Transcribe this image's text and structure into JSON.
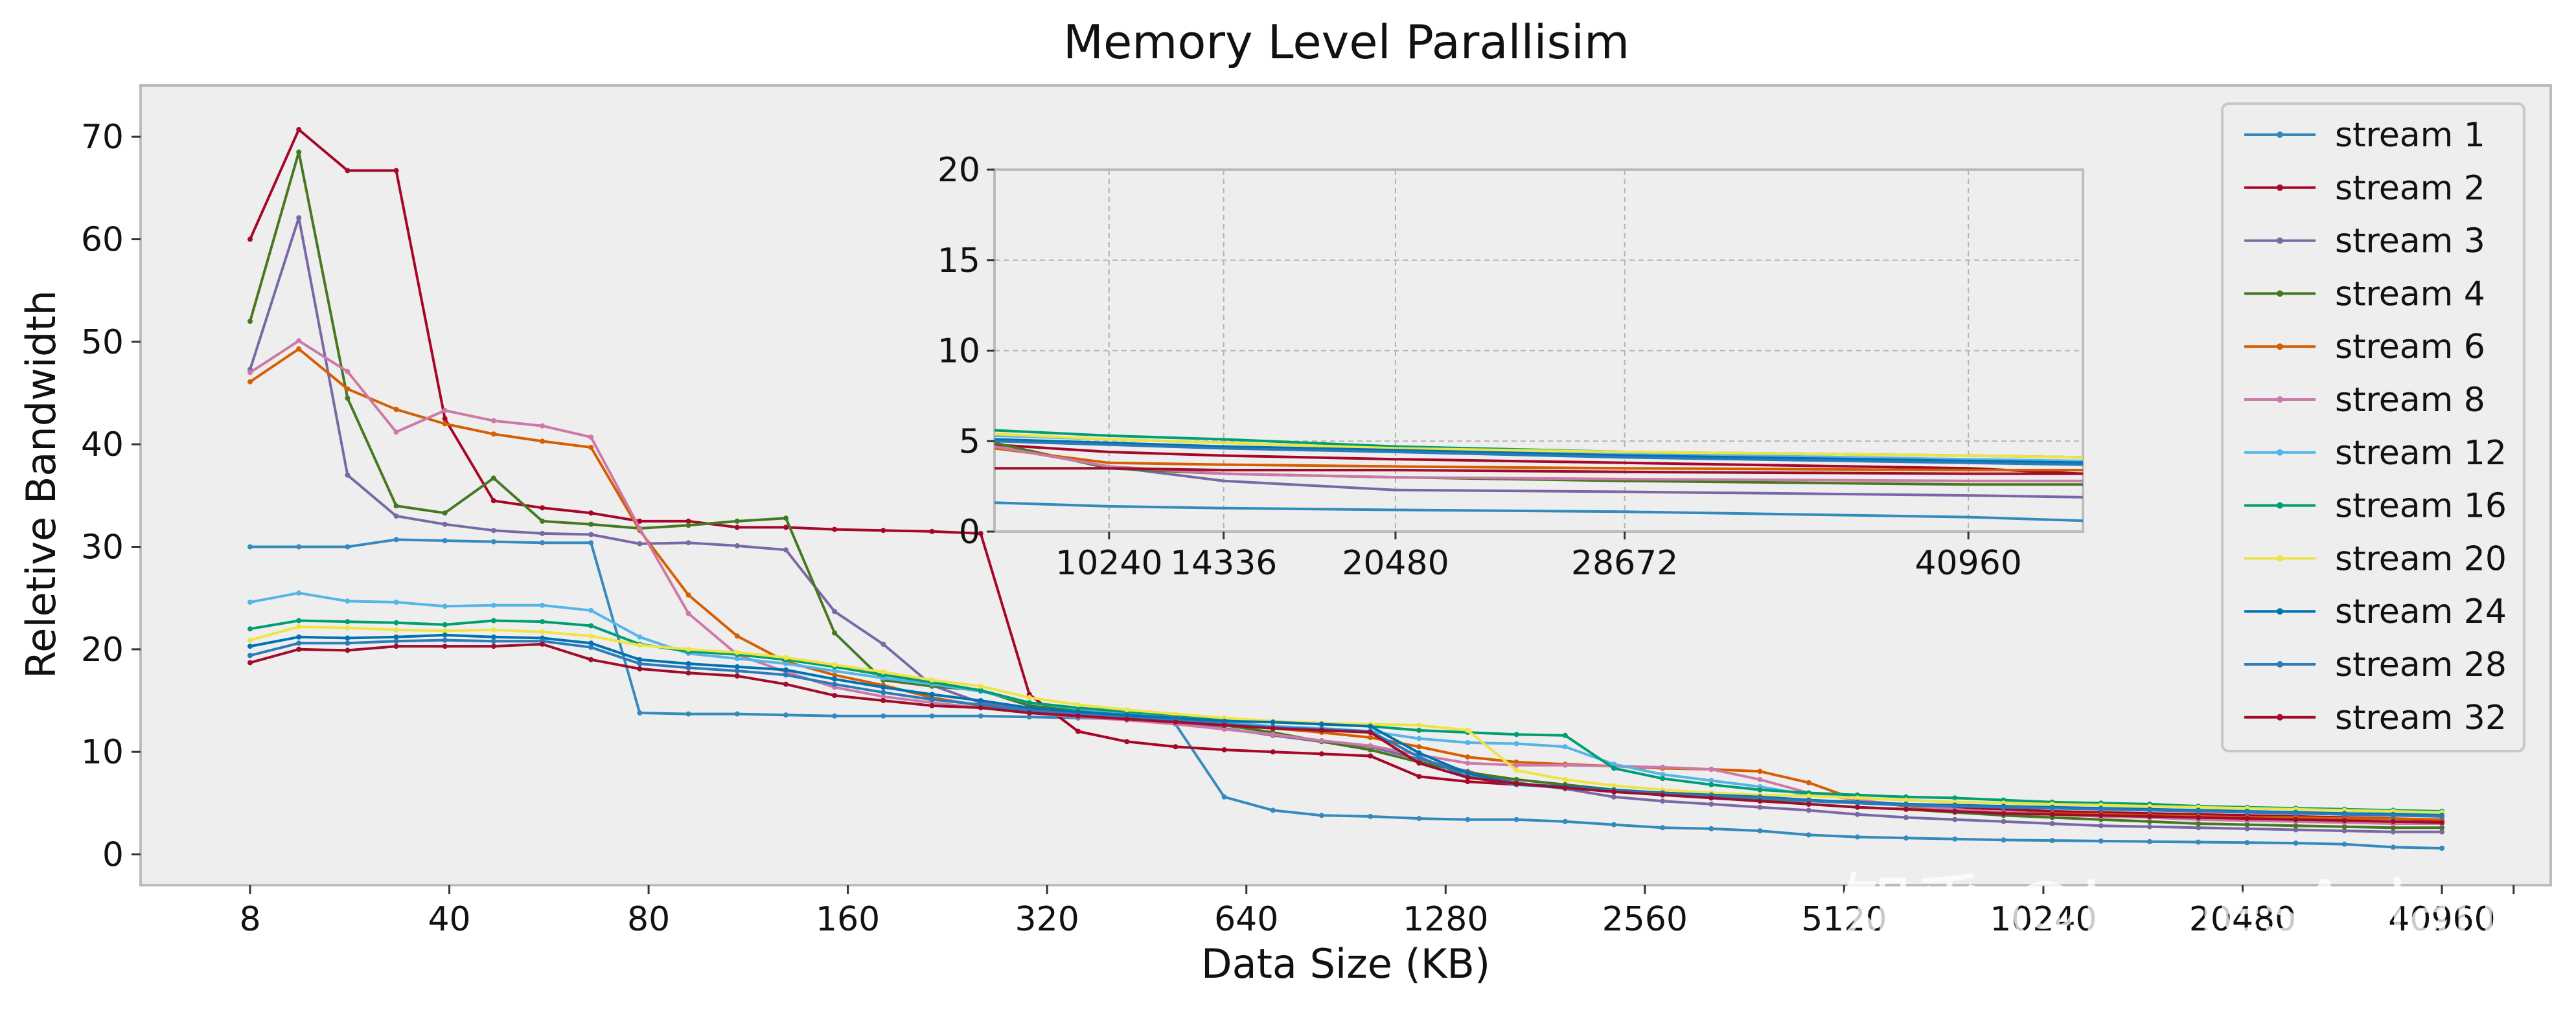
{
  "chart_data": {
    "type": "line",
    "title": "Memory Level Parallisim",
    "xlabel": "Data Size (KB)",
    "ylabel": "Reletive Bandwidth",
    "ylim": [
      -3,
      75
    ],
    "yticks": [
      0,
      10,
      20,
      30,
      40,
      50,
      60,
      70
    ],
    "x_tick_labels": [
      "8",
      "40",
      "80",
      "160",
      "320",
      "640",
      "1280",
      "2560",
      "5120",
      "10240",
      "20480",
      "40960"
    ],
    "x": [
      "8",
      "16",
      "24",
      "32",
      "40",
      "48",
      "56",
      "64",
      "80",
      "96",
      "112",
      "128",
      "160",
      "192",
      "224",
      "256",
      "320",
      "384",
      "448",
      "512",
      "640",
      "768",
      "896",
      "1024",
      "1280",
      "1536",
      "1792",
      "2048",
      "2560",
      "3072",
      "3584",
      "4096",
      "5120",
      "6144",
      "7168",
      "8192",
      "10240",
      "12288",
      "14336",
      "16384",
      "20480",
      "24576",
      "28672",
      "32768",
      "40960",
      "45056"
    ],
    "grid": false,
    "legend_position": "upper right",
    "series": [
      {
        "name": "stream 1",
        "color": "#348abd",
        "values": [
          30,
          30,
          30,
          30.7,
          30.6,
          30.5,
          30.4,
          30.4,
          13.8,
          13.7,
          13.7,
          13.6,
          13.5,
          13.5,
          13.5,
          13.5,
          13.4,
          13.3,
          13.2,
          12.7,
          5.6,
          4.3,
          3.8,
          3.7,
          3.5,
          3.4,
          3.4,
          3.2,
          2.9,
          2.6,
          2.5,
          2.3,
          1.9,
          1.7,
          1.6,
          1.5,
          1.4,
          1.35,
          1.3,
          1.25,
          1.2,
          1.15,
          1.1,
          1.0,
          0.7,
          0.6
        ]
      },
      {
        "name": "stream 2",
        "color": "#a60628",
        "values": [
          60,
          70.7,
          66.7,
          66.7,
          42.5,
          34.5,
          33.8,
          33.3,
          32.5,
          32.5,
          31.9,
          31.9,
          31.7,
          31.6,
          31.5,
          31.3,
          15.6,
          12,
          11,
          10.5,
          10.2,
          10,
          9.8,
          9.6,
          7.6,
          7.1,
          6.8,
          6.6,
          6.2,
          6.0,
          5.8,
          5.6,
          5.3,
          5.0,
          4.8,
          4.6,
          4.4,
          4.2,
          4.1,
          4.0,
          3.9,
          3.8,
          3.7,
          3.6,
          3.5,
          3.3
        ]
      },
      {
        "name": "stream 3",
        "color": "#7a68a6",
        "values": [
          47.3,
          62.1,
          37,
          33,
          32.2,
          31.6,
          31.3,
          31.2,
          30.3,
          30.4,
          30.1,
          29.7,
          23.7,
          20.5,
          16.5,
          14.8,
          14.2,
          13.8,
          13.5,
          13.0,
          12.3,
          11.6,
          11.0,
          10.5,
          9.3,
          8.1,
          7.0,
          6.4,
          5.6,
          5.2,
          4.9,
          4.6,
          4.3,
          3.9,
          3.6,
          3.4,
          3.2,
          3.0,
          2.8,
          2.7,
          2.6,
          2.5,
          2.4,
          2.3,
          2.2,
          2.2
        ]
      },
      {
        "name": "stream 4",
        "color": "#467821",
        "values": [
          52,
          68.5,
          44.5,
          34,
          33.3,
          36.7,
          32.5,
          32.2,
          31.8,
          32.1,
          32.5,
          32.8,
          21.6,
          17,
          16.4,
          16,
          14.5,
          14.0,
          13.6,
          13.2,
          12.6,
          11.9,
          11.0,
          10.2,
          9.0,
          8.0,
          7.3,
          6.8,
          6.3,
          5.9,
          5.6,
          5.3,
          4.9,
          4.6,
          4.4,
          4.1,
          3.8,
          3.6,
          3.4,
          3.2,
          3.0,
          2.9,
          2.8,
          2.7,
          2.6,
          2.6
        ]
      },
      {
        "name": "stream 6",
        "color": "#d55e00",
        "values": [
          46.1,
          49.3,
          45.4,
          43.4,
          42,
          41,
          40.3,
          39.7,
          31.6,
          25.3,
          21.3,
          18.8,
          17.5,
          16.5,
          15.3,
          14.5,
          14.0,
          13.6,
          13.3,
          13.0,
          12.6,
          12.3,
          11.9,
          11.4,
          10.5,
          9.5,
          9.0,
          8.8,
          8.6,
          8.4,
          8.3,
          8.1,
          7.0,
          5.3,
          4.7,
          4.3,
          4.1,
          4.0,
          3.9,
          3.8,
          3.7,
          3.6,
          3.6,
          3.5,
          3.5,
          3.4
        ]
      },
      {
        "name": "stream 8",
        "color": "#cc79a7",
        "values": [
          47,
          50.1,
          47.1,
          41.2,
          43.3,
          42.3,
          41.8,
          40.7,
          31.8,
          23.5,
          19.5,
          17.8,
          16.3,
          15.4,
          14.8,
          14.3,
          13.8,
          13.4,
          13.1,
          12.7,
          12.2,
          11.7,
          11.1,
          10.6,
          9.7,
          8.9,
          8.7,
          8.7,
          8.6,
          8.5,
          8.3,
          7.3,
          6.0,
          5.3,
          4.8,
          4.4,
          4.1,
          3.9,
          3.7,
          3.6,
          3.4,
          3.3,
          3.2,
          3.1,
          3.0,
          3.0
        ]
      },
      {
        "name": "stream 12",
        "color": "#56b4e9",
        "values": [
          24.6,
          25.5,
          24.7,
          24.6,
          24.2,
          24.3,
          24.3,
          23.8,
          21.2,
          19.6,
          19.1,
          18.6,
          17.9,
          17.2,
          16.6,
          15.9,
          14.8,
          14.2,
          13.8,
          13.4,
          12.9,
          12.5,
          12.3,
          12.0,
          11.3,
          10.9,
          10.8,
          10.5,
          8.8,
          7.8,
          7.2,
          6.6,
          5.8,
          5.5,
          5.3,
          5.1,
          5.0,
          4.9,
          4.8,
          4.7,
          4.6,
          4.5,
          4.4,
          4.3,
          4.1,
          4.0
        ]
      },
      {
        "name": "stream 16",
        "color": "#009e73",
        "values": [
          22,
          22.8,
          22.7,
          22.6,
          22.4,
          22.8,
          22.7,
          22.3,
          20.5,
          19.8,
          19.5,
          19.0,
          18.3,
          17.5,
          16.8,
          16.0,
          14.8,
          14.3,
          13.9,
          13.6,
          13.2,
          12.9,
          12.7,
          12.5,
          12.1,
          11.9,
          11.7,
          11.6,
          8.4,
          7.4,
          6.8,
          6.3,
          6.0,
          5.8,
          5.6,
          5.5,
          5.3,
          5.1,
          5.0,
          4.9,
          4.7,
          4.6,
          4.5,
          4.4,
          4.3,
          4.2
        ]
      },
      {
        "name": "stream 20",
        "color": "#f0e442",
        "values": [
          20.9,
          22.2,
          22.1,
          21.9,
          21.8,
          21.9,
          21.7,
          21.3,
          20.4,
          20.0,
          19.7,
          19.2,
          18.5,
          17.8,
          17.0,
          16.4,
          15.3,
          14.6,
          14.1,
          13.7,
          13.3,
          13.0,
          12.8,
          12.7,
          12.6,
          12.1,
          8.2,
          7.3,
          6.7,
          6.3,
          6.0,
          5.8,
          5.7,
          5.5,
          5.3,
          5.1,
          5.0,
          4.9,
          4.8,
          4.7,
          4.6,
          4.5,
          4.4,
          4.3,
          4.2,
          4.1
        ]
      },
      {
        "name": "stream 24",
        "color": "#0072b2",
        "values": [
          20.3,
          21.2,
          21.1,
          21.2,
          21.4,
          21.2,
          21.1,
          20.6,
          19.0,
          18.6,
          18.3,
          18.0,
          17.1,
          16.3,
          15.6,
          15.0,
          14.3,
          13.9,
          13.6,
          13.3,
          13.0,
          12.9,
          12.7,
          12.5,
          9.9,
          7.9,
          6.9,
          6.6,
          6.3,
          6.0,
          5.8,
          5.6,
          5.3,
          5.1,
          4.9,
          4.8,
          4.7,
          4.6,
          4.5,
          4.4,
          4.3,
          4.2,
          4.1,
          4.0,
          3.9,
          3.8
        ]
      },
      {
        "name": "stream 28",
        "color": "#2b7bba",
        "values": [
          19.4,
          20.6,
          20.6,
          20.8,
          20.9,
          20.8,
          20.8,
          20.2,
          18.6,
          18.2,
          17.9,
          17.5,
          16.6,
          15.8,
          15.1,
          14.6,
          14.0,
          13.6,
          13.3,
          13.1,
          12.7,
          12.4,
          12.2,
          12.0,
          9.5,
          7.6,
          6.8,
          6.5,
          6.2,
          5.9,
          5.7,
          5.5,
          5.2,
          5.0,
          4.8,
          4.7,
          4.6,
          4.5,
          4.4,
          4.3,
          4.2,
          4.1,
          4.0,
          3.9,
          3.8,
          3.7
        ]
      },
      {
        "name": "stream 32",
        "color": "#a00c2c",
        "values": [
          18.7,
          20,
          19.9,
          20.3,
          20.3,
          20.3,
          20.5,
          19.0,
          18.1,
          17.7,
          17.4,
          16.6,
          15.5,
          15.0,
          14.5,
          14.3,
          13.8,
          13.5,
          13.2,
          12.9,
          12.6,
          12.3,
          12.1,
          11.9,
          8.9,
          7.5,
          6.9,
          6.5,
          6.1,
          5.8,
          5.5,
          5.2,
          4.9,
          4.6,
          4.4,
          4.2,
          4.0,
          3.9,
          3.8,
          3.7,
          3.6,
          3.5,
          3.4,
          3.3,
          3.2,
          3.1
        ]
      }
    ],
    "inset": {
      "type": "line",
      "x": [
        6144,
        10240,
        14336,
        20480,
        28672,
        40960,
        45056
      ],
      "x_tick_labels": [
        "10240",
        "14336",
        "20480",
        "28672",
        "40960"
      ],
      "ylim": [
        0,
        20
      ],
      "yticks": [
        0,
        5,
        10,
        15,
        20
      ],
      "grid": true,
      "series": [
        {
          "name": "stream 1",
          "values": [
            1.6,
            1.4,
            1.3,
            1.2,
            1.1,
            0.8,
            0.6
          ]
        },
        {
          "name": "stream 2",
          "values": [
            4.8,
            4.4,
            4.2,
            4.0,
            3.8,
            3.5,
            3.2
          ]
        },
        {
          "name": "stream 3",
          "values": [
            4.7,
            3.6,
            2.8,
            2.3,
            2.2,
            2.0,
            1.9
          ]
        },
        {
          "name": "stream 4",
          "values": [
            4.9,
            3.5,
            3.2,
            3.0,
            2.8,
            2.6,
            2.6
          ]
        },
        {
          "name": "stream 6",
          "values": [
            4.6,
            3.8,
            3.7,
            3.6,
            3.5,
            3.4,
            3.4
          ]
        },
        {
          "name": "stream 8",
          "values": [
            4.7,
            3.6,
            3.2,
            3.0,
            2.9,
            2.8,
            2.8
          ]
        },
        {
          "name": "stream 12",
          "values": [
            5.3,
            5.1,
            4.9,
            4.6,
            4.3,
            4.0,
            3.9
          ]
        },
        {
          "name": "stream 16",
          "values": [
            5.6,
            5.3,
            5.1,
            4.7,
            4.4,
            4.2,
            4.1
          ]
        },
        {
          "name": "stream 20",
          "values": [
            5.4,
            5.1,
            4.9,
            4.6,
            4.4,
            4.2,
            4.1
          ]
        },
        {
          "name": "stream 24",
          "values": [
            5.1,
            4.9,
            4.7,
            4.5,
            4.2,
            3.9,
            3.8
          ]
        },
        {
          "name": "stream 28",
          "values": [
            5.0,
            4.8,
            4.6,
            4.4,
            4.1,
            3.8,
            3.7
          ]
        },
        {
          "name": "stream 32",
          "values": [
            3.5,
            3.5,
            3.4,
            3.4,
            3.3,
            3.2,
            3.2
          ]
        }
      ]
    }
  },
  "watermark": "知乎 @JamesAslan"
}
